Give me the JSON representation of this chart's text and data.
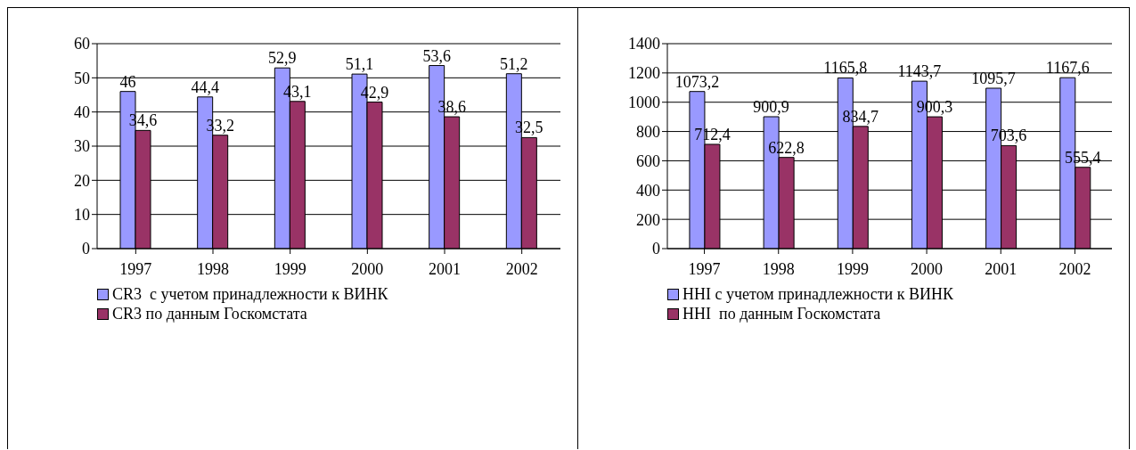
{
  "chart_data": [
    {
      "type": "bar",
      "categories": [
        "1997",
        "1998",
        "1999",
        "2000",
        "2001",
        "2002"
      ],
      "series": [
        {
          "name": "CR3  с учетом принадлежности к ВИНК",
          "color": "#9999ff",
          "values": [
            46,
            44.4,
            52.9,
            51.1,
            53.6,
            51.2
          ],
          "value_labels": [
            "46",
            "44,4",
            "52,9",
            "51,1",
            "53,6",
            "51,2"
          ]
        },
        {
          "name": "CR3 по данным Госкомстата",
          "color": "#993366",
          "values": [
            34.6,
            33.2,
            43.1,
            42.9,
            38.6,
            32.5
          ],
          "value_labels": [
            "34,6",
            "33,2",
            "43,1",
            "42,9",
            "38,6",
            "32,5"
          ]
        }
      ],
      "ylim": [
        0,
        60
      ],
      "yticks": [
        0,
        10,
        20,
        30,
        40,
        50,
        60
      ],
      "grid": "y",
      "legend": "bottom"
    },
    {
      "type": "bar",
      "categories": [
        "1997",
        "1998",
        "1999",
        "2000",
        "2001",
        "2002"
      ],
      "series": [
        {
          "name": "HHI с учетом принадлежности к ВИНК",
          "color": "#9999ff",
          "values": [
            1073.2,
            900.9,
            1165.8,
            1143.7,
            1095.7,
            1167.6
          ],
          "value_labels": [
            "1073,2",
            "900,9",
            "1165,8",
            "1143,7",
            "1095,7",
            "1167,6"
          ]
        },
        {
          "name": "HHI  по данным Госкомстата",
          "color": "#993366",
          "values": [
            712.4,
            622.8,
            834.7,
            900.3,
            703.6,
            555.4
          ],
          "value_labels": [
            "712,4",
            "622,8",
            "834,7",
            "900,3",
            "703,6",
            "555,4"
          ]
        }
      ],
      "ylim": [
        0,
        1400
      ],
      "yticks": [
        0,
        200,
        400,
        600,
        800,
        1000,
        1200,
        1400
      ],
      "grid": "y",
      "legend": "bottom"
    }
  ]
}
